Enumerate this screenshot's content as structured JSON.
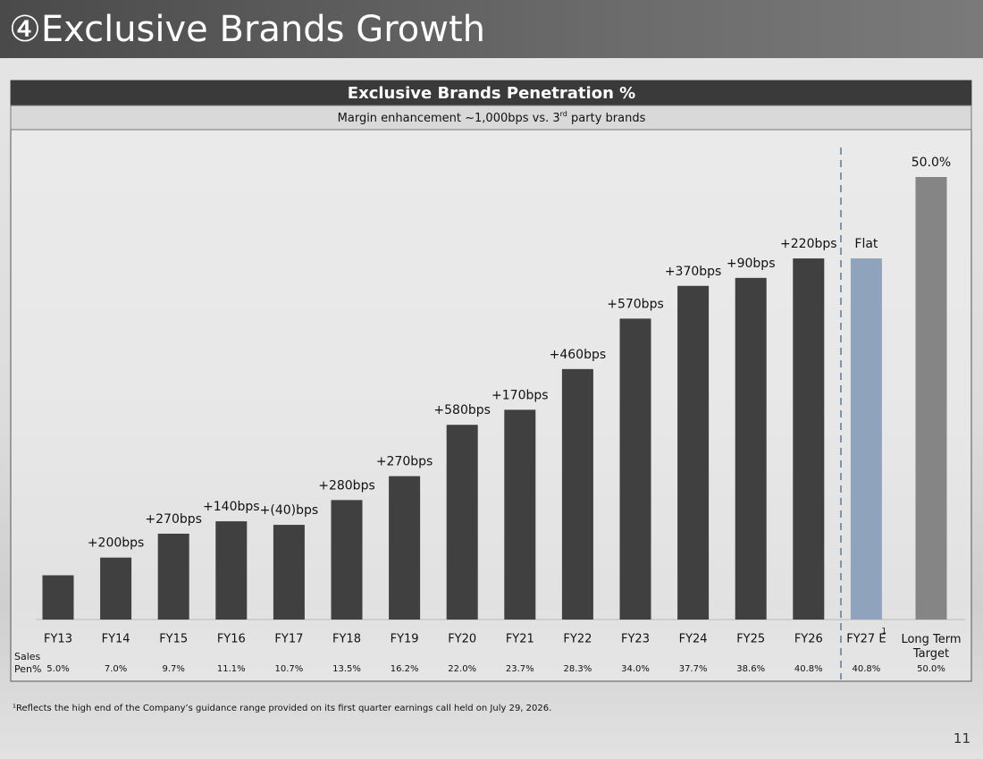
{
  "slide_title": "④Exclusive Brands Growth",
  "page_number": "11",
  "footnote": "¹Reflects the high end of the Company’s guidance range provided on its first quarter earnings call held on July 29, 2026.",
  "chart_data": {
    "type": "bar",
    "title": "Exclusive Brands Penetration %",
    "subtitle": {
      "text": "Margin enhancement ~1,000bps vs. 3",
      "superscript": "rd",
      "tail": "party brands"
    },
    "categories": [
      "FY13",
      "FY14",
      "FY15",
      "FY16",
      "FY17",
      "FY18",
      "FY19",
      "FY20",
      "FY21",
      "FY22",
      "FY23",
      "FY24",
      "FY25",
      "FY26",
      "FY27 E",
      "Long Term Target"
    ],
    "category_superscripts": [
      null,
      null,
      null,
      null,
      null,
      null,
      null,
      null,
      null,
      null,
      null,
      null,
      null,
      null,
      "1",
      null
    ],
    "values": [
      5.0,
      7.0,
      9.7,
      11.1,
      10.7,
      13.5,
      16.2,
      22.0,
      23.7,
      28.3,
      34.0,
      37.7,
      38.6,
      40.8,
      40.8,
      50.0
    ],
    "value_labels": [
      "5.0%",
      "7.0%",
      "9.7%",
      "11.1%",
      "10.7%",
      "13.5%",
      "16.2%",
      "22.0%",
      "23.7%",
      "28.3%",
      "34.0%",
      "37.7%",
      "38.6%",
      "40.8%",
      "40.8%",
      "50.0%"
    ],
    "value_label_title": "Sales Pen%",
    "annotations": [
      null,
      "+200bps",
      "+270bps",
      "+140bps",
      "+(40)bps",
      "+280bps",
      "+270bps",
      "+580bps",
      "+170bps",
      "+460bps",
      "+570bps",
      "+370bps",
      "+90bps",
      "+220bps",
      "Flat",
      "50.0%"
    ],
    "colors": [
      "#404040",
      "#404040",
      "#404040",
      "#404040",
      "#404040",
      "#404040",
      "#404040",
      "#404040",
      "#404040",
      "#404040",
      "#404040",
      "#404040",
      "#404040",
      "#404040",
      "#8fa3bd",
      "#858585"
    ],
    "ylim": [
      0,
      50
    ]
  }
}
